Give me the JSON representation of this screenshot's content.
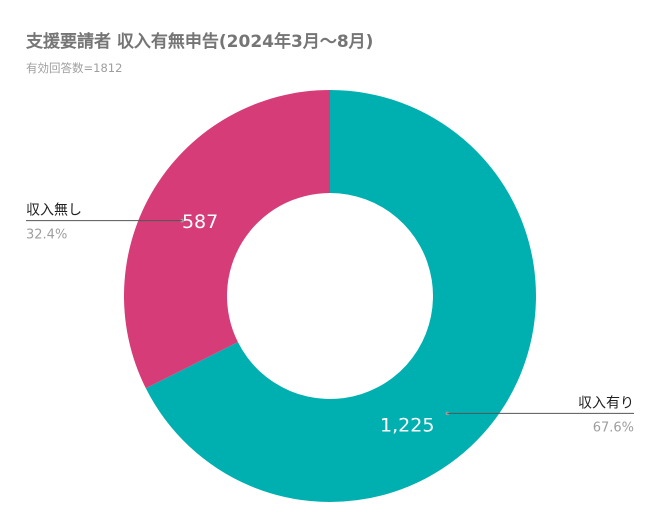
{
  "chart_data": {
    "type": "pie",
    "donut": true,
    "title": "支援要請者 収入有無申告(2024年3月～8月)",
    "subtitle": "有効回答数=1812",
    "slices": [
      {
        "label": "収入有り",
        "value": 1225,
        "value_label": "1,225",
        "percent_label": "67.6%",
        "color": "#00b0b0"
      },
      {
        "label": "収入無し",
        "value": 587,
        "value_label": "587",
        "percent_label": "32.4%",
        "color": "#d63c78"
      }
    ],
    "legend": "callouts"
  }
}
